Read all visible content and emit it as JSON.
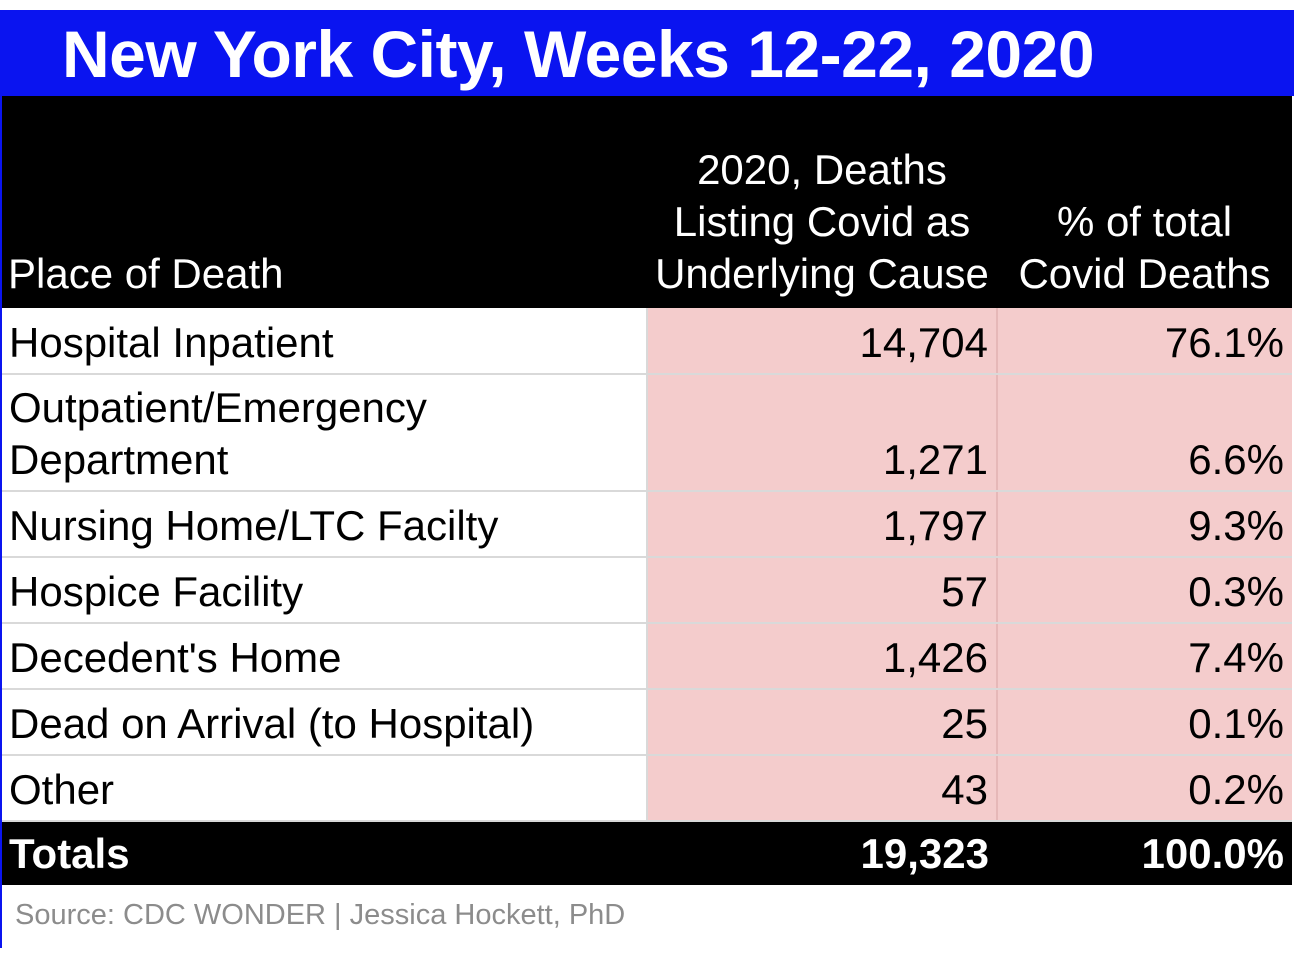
{
  "chart_data": {
    "type": "table",
    "title": "New York City, Weeks 12-22, 2020",
    "columns": [
      "Place of Death",
      "2020, Deaths Listing Covid as Underlying Cause",
      "% of total Covid Deaths"
    ],
    "header_lines": {
      "col1": [
        "Place of Death"
      ],
      "col2": [
        "2020, Deaths",
        "Listing Covid as",
        "Underlying Cause"
      ],
      "col3": [
        "% of total",
        "Covid Deaths"
      ]
    },
    "rows": [
      {
        "place": "Hospital Inpatient",
        "deaths": "14,704",
        "percent": "76.1%",
        "deaths_value": 14704,
        "percent_value": 76.1
      },
      {
        "place": "Outpatient/Emergency Department",
        "place_lines": [
          "Outpatient/Emergency",
          "Department"
        ],
        "deaths": "1,271",
        "percent": "6.6%",
        "deaths_value": 1271,
        "percent_value": 6.6
      },
      {
        "place": "Nursing Home/LTC Facilty",
        "deaths": "1,797",
        "percent": "9.3%",
        "deaths_value": 1797,
        "percent_value": 9.3
      },
      {
        "place": "Hospice Facility",
        "deaths": "57",
        "percent": "0.3%",
        "deaths_value": 57,
        "percent_value": 0.3
      },
      {
        "place": "Decedent's Home",
        "deaths": "1,426",
        "percent": "7.4%",
        "deaths_value": 1426,
        "percent_value": 7.4
      },
      {
        "place": "Dead on Arrival (to Hospital)",
        "deaths": "25",
        "percent": "0.1%",
        "deaths_value": 25,
        "percent_value": 0.1
      },
      {
        "place": "Other",
        "deaths": "43",
        "percent": "0.2%",
        "deaths_value": 43,
        "percent_value": 0.2
      }
    ],
    "totals": {
      "label": "Totals",
      "deaths": "19,323",
      "percent": "100.0%",
      "deaths_value": 19323,
      "percent_value": 100.0
    },
    "source": "Source: CDC WONDER | Jessica Hockett, PhD"
  },
  "colors": {
    "title_bg": "#0a14f0",
    "header_bg": "#000000",
    "value_cell_bg": "#f4cccc",
    "source_text": "#8c8c8c"
  }
}
